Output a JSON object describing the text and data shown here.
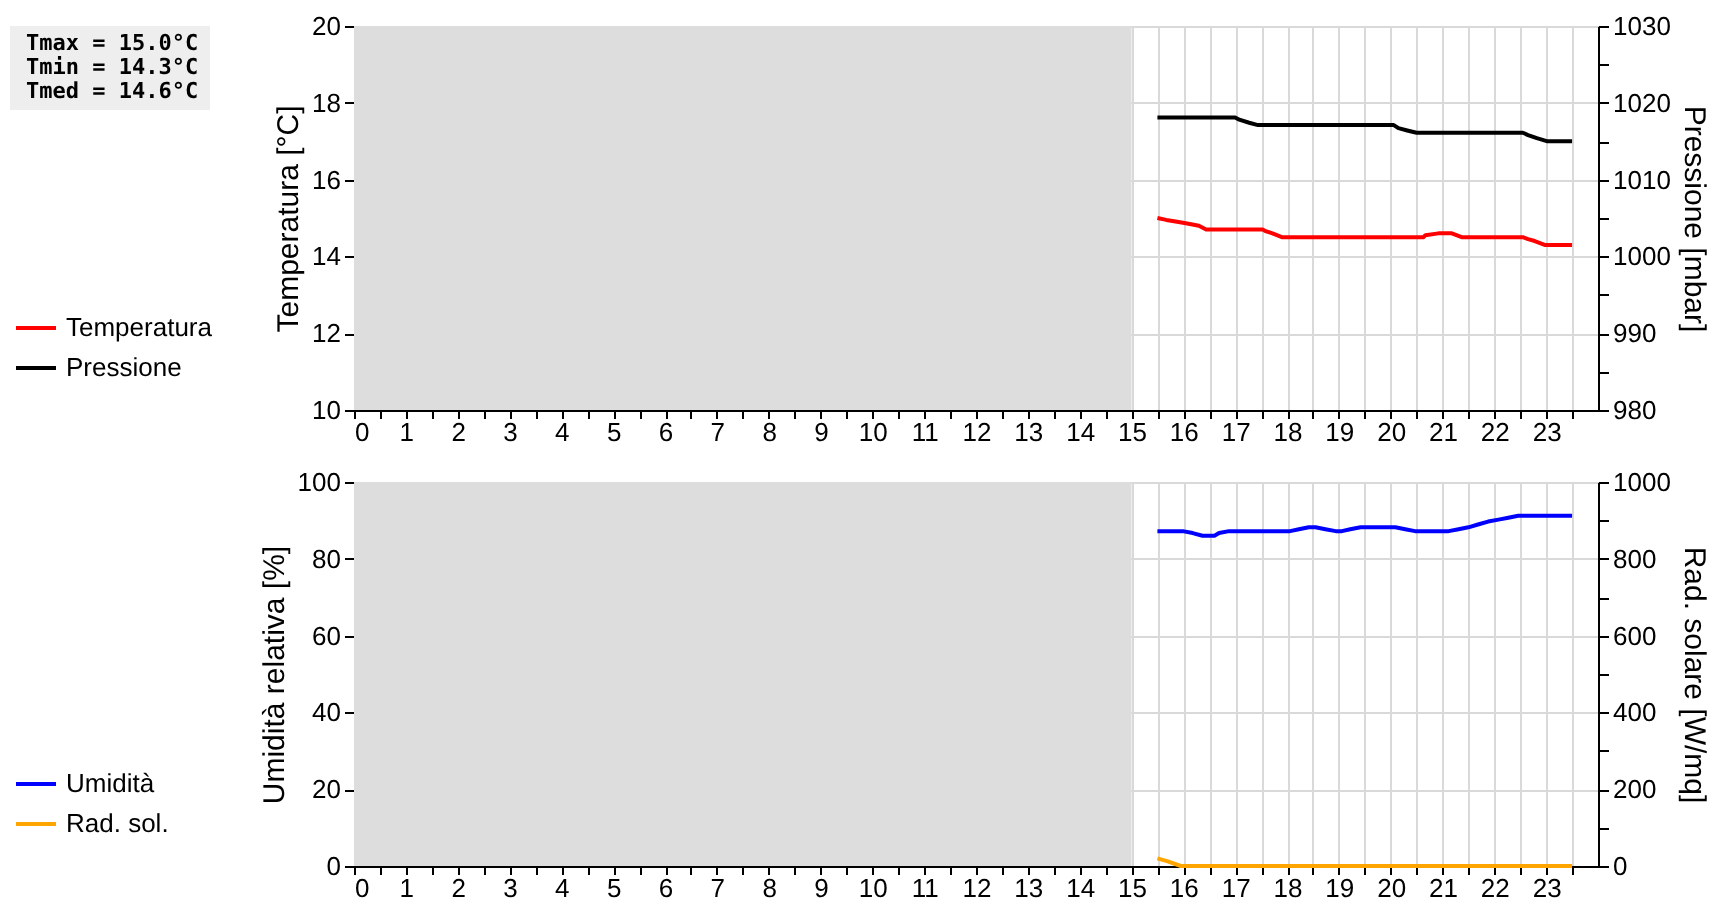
{
  "chart_data": [
    {
      "type": "line",
      "xlim": [
        0,
        24
      ],
      "xticks": [
        0,
        {
          "value": 0.5,
          "label": null
        },
        1,
        {
          "value": 1.5,
          "label": null
        },
        2,
        {
          "value": 2.5,
          "label": null
        },
        3,
        {
          "value": 3.5,
          "label": null
        },
        4,
        {
          "value": 4.5,
          "label": null
        },
        5,
        {
          "value": 5.5,
          "label": null
        },
        6,
        {
          "value": 6.5,
          "label": null
        },
        7,
        {
          "value": 7.5,
          "label": null
        },
        8,
        {
          "value": 8.5,
          "label": null
        },
        9,
        {
          "value": 9.5,
          "label": null
        },
        10,
        {
          "value": 10.5,
          "label": null
        },
        11,
        {
          "value": 11.5,
          "label": null
        },
        12,
        {
          "value": 12.5,
          "label": null
        },
        13,
        {
          "value": 13.5,
          "label": null
        },
        14,
        {
          "value": 14.5,
          "label": null
        },
        15,
        {
          "value": 15.5,
          "label": null
        },
        16,
        {
          "value": 16.5,
          "label": null
        },
        17,
        {
          "value": 17.5,
          "label": null
        },
        18,
        {
          "value": 18.5,
          "label": null
        },
        19,
        {
          "value": 19.5,
          "label": null
        },
        20,
        {
          "value": 20.5,
          "label": null
        },
        21,
        {
          "value": 21.5,
          "label": null
        },
        22,
        {
          "value": 22.5,
          "label": null
        },
        23,
        {
          "value": 23.5,
          "label": null
        }
      ],
      "ylabel": "Temperatura [°C]",
      "y2label": "Pressione [mbar]",
      "ylim": [
        10,
        20
      ],
      "yticks": [
        10,
        12,
        14,
        16,
        18,
        20
      ],
      "y2lim": [
        980,
        1030
      ],
      "y2ticks": [
        980,
        {
          "value": 985,
          "label": null
        },
        990,
        {
          "value": 995,
          "label": null
        },
        1000,
        {
          "value": 1005,
          "label": null
        },
        1010,
        {
          "value": 1015,
          "label": null
        },
        1020,
        {
          "value": 1025,
          "label": null
        },
        1030
      ],
      "grid": true,
      "legend": "left",
      "bands": [
        {
          "axis": "x",
          "from": 0,
          "to": 15,
          "color": "#dddddd"
        }
      ],
      "annotations": [
        "Tmax = 15.0°C",
        "Tmin = 14.3°C",
        "Tmed = 14.6°C"
      ],
      "series": [
        {
          "name": "Temperatura",
          "color": "#ff0000",
          "x": [
            15.5,
            15.67,
            15.88,
            16.1,
            16.3,
            16.44,
            17.53,
            17.6,
            17.72,
            17.9,
            20.63,
            20.67,
            20.92,
            21.18,
            21.37,
            22.55,
            22.65,
            22.78,
            22.97,
            23.5
          ],
          "values": [
            15.0,
            14.95,
            14.9,
            14.85,
            14.8,
            14.7,
            14.7,
            14.65,
            14.6,
            14.5,
            14.5,
            14.55,
            14.6,
            14.6,
            14.5,
            14.5,
            14.45,
            14.4,
            14.3,
            14.3
          ]
        },
        {
          "name": "Pressione",
          "color": "#000000",
          "axis": "y2",
          "x": [
            15.5,
            17.0,
            17.08,
            17.27,
            17.44,
            20.06,
            20.15,
            20.32,
            20.5,
            22.55,
            22.65,
            22.82,
            23.01,
            23.5
          ],
          "values": [
            1018.1,
            1018.1,
            1017.8,
            1017.4,
            1017.1,
            1017.1,
            1016.7,
            1016.4,
            1016.1,
            1016.1,
            1015.8,
            1015.4,
            1015.0,
            1015.0
          ]
        }
      ]
    },
    {
      "type": "line",
      "xlim": [
        0,
        24
      ],
      "xticks": [
        0,
        {
          "value": 0.5,
          "label": null
        },
        1,
        {
          "value": 1.5,
          "label": null
        },
        2,
        {
          "value": 2.5,
          "label": null
        },
        3,
        {
          "value": 3.5,
          "label": null
        },
        4,
        {
          "value": 4.5,
          "label": null
        },
        5,
        {
          "value": 5.5,
          "label": null
        },
        6,
        {
          "value": 6.5,
          "label": null
        },
        7,
        {
          "value": 7.5,
          "label": null
        },
        8,
        {
          "value": 8.5,
          "label": null
        },
        9,
        {
          "value": 9.5,
          "label": null
        },
        10,
        {
          "value": 10.5,
          "label": null
        },
        11,
        {
          "value": 11.5,
          "label": null
        },
        12,
        {
          "value": 12.5,
          "label": null
        },
        13,
        {
          "value": 13.5,
          "label": null
        },
        14,
        {
          "value": 14.5,
          "label": null
        },
        15,
        {
          "value": 15.5,
          "label": null
        },
        16,
        {
          "value": 16.5,
          "label": null
        },
        17,
        {
          "value": 17.5,
          "label": null
        },
        18,
        {
          "value": 18.5,
          "label": null
        },
        19,
        {
          "value": 19.5,
          "label": null
        },
        20,
        {
          "value": 20.5,
          "label": null
        },
        21,
        {
          "value": 21.5,
          "label": null
        },
        22,
        {
          "value": 22.5,
          "label": null
        },
        23,
        {
          "value": 23.5,
          "label": null
        }
      ],
      "ylabel": "Umidità relativa [%]",
      "y2label": "Rad. solare [W/mq]",
      "ylim": [
        0,
        100
      ],
      "yticks": [
        0,
        20,
        40,
        60,
        80,
        100
      ],
      "y2lim": [
        0,
        1000
      ],
      "y2ticks": [
        0,
        {
          "value": 100,
          "label": null
        },
        200,
        {
          "value": 300,
          "label": null
        },
        400,
        {
          "value": 500,
          "label": null
        },
        600,
        {
          "value": 700,
          "label": null
        },
        800,
        {
          "value": 900,
          "label": null
        },
        1000
      ],
      "grid": true,
      "legend": "left",
      "bands": [
        {
          "axis": "x",
          "from": 0,
          "to": 15,
          "color": "#dddddd"
        }
      ],
      "series": [
        {
          "name": "Umidità",
          "color": "#0000ff",
          "x": [
            15.5,
            15.99,
            16.18,
            16.37,
            16.6,
            16.69,
            16.88,
            18.06,
            18.23,
            18.42,
            18.55,
            18.74,
            18.94,
            19.06,
            19.22,
            19.42,
            20.09,
            20.28,
            20.47,
            21.12,
            21.31,
            21.5,
            21.7,
            21.88,
            22.08,
            22.27,
            22.46,
            23.5
          ],
          "values": [
            87.2,
            87.2,
            86.7,
            86.0,
            86.0,
            86.7,
            87.2,
            87.2,
            87.7,
            88.2,
            88.2,
            87.7,
            87.2,
            87.2,
            87.7,
            88.2,
            88.2,
            87.7,
            87.2,
            87.2,
            87.7,
            88.2,
            89.0,
            89.7,
            90.2,
            90.7,
            91.2,
            91.2
          ]
        },
        {
          "name": "Rad. sol.",
          "color": "#ffa500",
          "axis": "y2",
          "x": [
            15.5,
            15.7,
            15.95,
            23.5
          ],
          "values": [
            20,
            12,
            0,
            0
          ]
        }
      ]
    }
  ]
}
